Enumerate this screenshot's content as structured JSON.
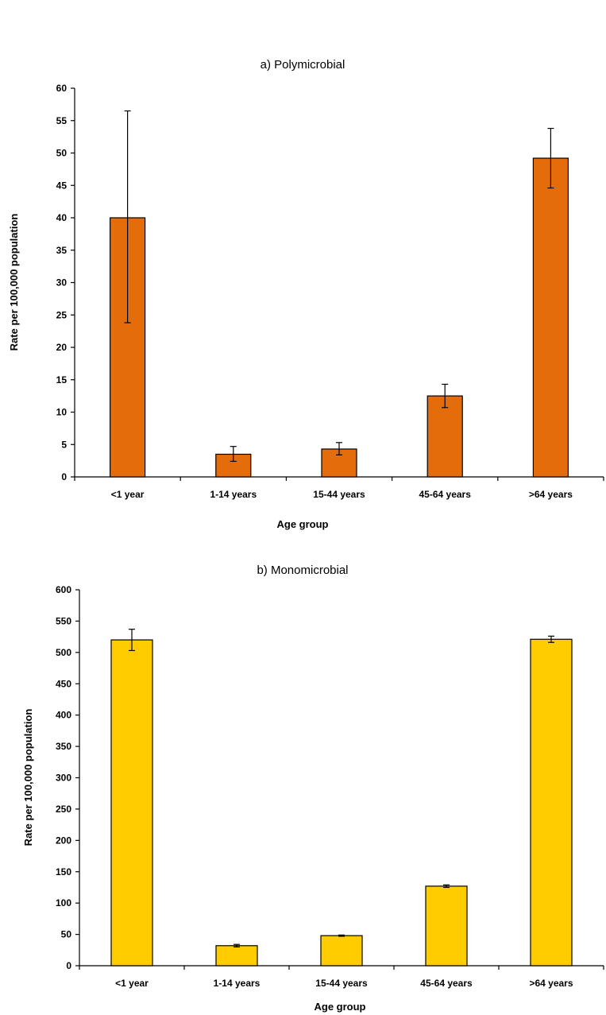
{
  "chart_data": [
    {
      "type": "bar",
      "title": "a) Polymicrobial",
      "xlabel": "Age group",
      "ylabel": "Rate per 100,000 population",
      "categories": [
        "<1 year",
        "1-14 years",
        "15-44 years",
        "45-64 years",
        ">64 years"
      ],
      "values": [
        40,
        3.5,
        4.3,
        12.5,
        49.2
      ],
      "error_low": [
        23.8,
        2.4,
        3.4,
        10.7,
        44.6
      ],
      "error_high": [
        56.5,
        4.7,
        5.3,
        14.3,
        53.8
      ],
      "ylim": [
        0,
        60
      ],
      "yticks": [
        0,
        5,
        10,
        15,
        20,
        25,
        30,
        35,
        40,
        45,
        50,
        55,
        60
      ],
      "bar_color": "#E46C0A",
      "grid": false,
      "legend": "none"
    },
    {
      "type": "bar",
      "title": "b) Monomicrobial",
      "xlabel": "Age group",
      "ylabel": "Rate per 100,000 population",
      "categories": [
        "<1 year",
        "1-14 years",
        "15-44 years",
        "45-64 years",
        ">64 years"
      ],
      "values": [
        520,
        32,
        48,
        127,
        521
      ],
      "error_low": [
        503,
        30,
        47,
        125,
        516
      ],
      "error_high": [
        537,
        34,
        49,
        129,
        526
      ],
      "ylim": [
        0,
        600
      ],
      "yticks": [
        0,
        50,
        100,
        150,
        200,
        250,
        300,
        350,
        400,
        450,
        500,
        550,
        600
      ],
      "bar_color": "#FFCC00",
      "grid": false,
      "legend": "none"
    }
  ]
}
